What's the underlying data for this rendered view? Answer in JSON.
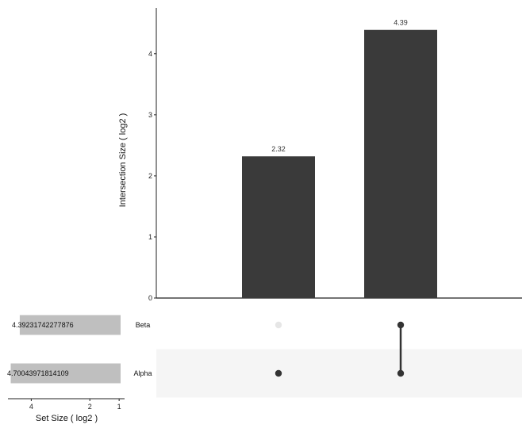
{
  "chart_data": {
    "type": "bar",
    "subtype": "upset",
    "ylabel": "Intersection Size ( log2 )",
    "ylim": [
      0,
      4.75
    ],
    "yticks": [
      0,
      1,
      2,
      3,
      4
    ],
    "intersections": [
      {
        "value": 2.32,
        "label": "2.32",
        "sets": [
          "Alpha"
        ]
      },
      {
        "value": 4.39,
        "label": "4.39",
        "sets": [
          "Beta",
          "Alpha"
        ]
      }
    ],
    "set_size": {
      "xlabel": "Set Size ( log2 )",
      "xlim": [
        0.95,
        4.85
      ],
      "xticks": [
        4,
        2,
        1
      ],
      "reversed": true,
      "sets": [
        {
          "name": "Beta",
          "value": 4.39231742277876,
          "label": "4.39231742277876"
        },
        {
          "name": "Alpha",
          "value": 4.70043971814109,
          "label": "4.70043971814109"
        }
      ]
    },
    "grid": false,
    "legend": "none",
    "colors": {
      "bar": "#3a3a3a",
      "dot_active": "#333333",
      "dot_inactive": "#e6e6e6",
      "set_bar": "#bfbfbf",
      "stripe": "#f5f5f5",
      "axis": "#222222"
    }
  }
}
